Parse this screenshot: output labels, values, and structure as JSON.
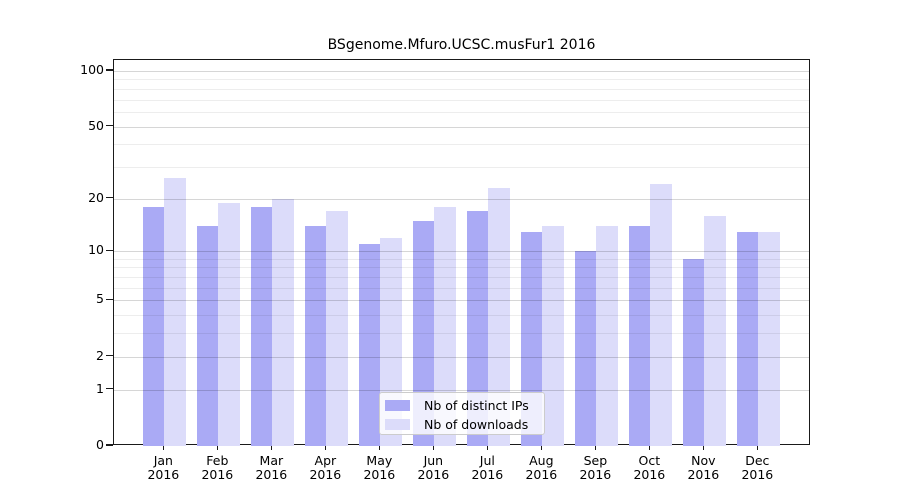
{
  "figure": {
    "title": "BSgenome.Mfuro.UCSC.musFur1 2016"
  },
  "chart_data": {
    "type": "bar",
    "title": "BSgenome.Mfuro.UCSC.musFur1 2016",
    "months": [
      "Jan",
      "Feb",
      "Mar",
      "Apr",
      "May",
      "Jun",
      "Jul",
      "Aug",
      "Sep",
      "Oct",
      "Nov",
      "Dec"
    ],
    "year": "2016",
    "categories": [
      "Jan 2016",
      "Feb 2016",
      "Mar 2016",
      "Apr 2016",
      "May 2016",
      "Jun 2016",
      "Jul 2016",
      "Aug 2016",
      "Sep 2016",
      "Oct 2016",
      "Nov 2016",
      "Dec 2016"
    ],
    "series": [
      {
        "name": "Nb of distinct IPs",
        "color": "#aaaaf5",
        "values": [
          18,
          14,
          18,
          14,
          11,
          15,
          17,
          13,
          10,
          14,
          9,
          13
        ]
      },
      {
        "name": "Nb of downloads",
        "color": "#dcdcfa",
        "values": [
          26,
          19,
          20,
          17,
          12,
          18,
          23,
          14,
          14,
          24,
          16,
          13
        ]
      }
    ],
    "yscale": "log1p",
    "yticks": [
      0,
      1,
      2,
      5,
      10,
      20,
      50,
      100
    ],
    "yticks_minor": [
      3,
      4,
      6,
      7,
      8,
      9,
      30,
      40,
      60,
      70,
      80,
      90
    ],
    "ylim": [
      0,
      115
    ],
    "xlabel": "",
    "ylabel": "",
    "grid": "horizontal",
    "legend_position": "bottom-center",
    "colors": {
      "axis": "#1a1a1a",
      "grid_major": "#d6d6d6",
      "grid_minor": "#ececec",
      "background": "#ffffff"
    }
  }
}
